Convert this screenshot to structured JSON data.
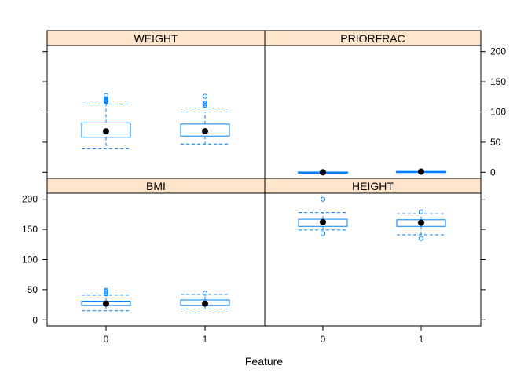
{
  "chart_data": {
    "type": "boxplot",
    "xlabel": "Feature",
    "x_categories": [
      "0",
      "1"
    ],
    "y_ticks": [
      0,
      50,
      100,
      150,
      200
    ],
    "y_range": [
      -10,
      210
    ],
    "colors": {
      "box": "#0080ff",
      "median_dot": "#000000",
      "strip_fill": "#ffe5cc",
      "frame": "#000000"
    },
    "panels": [
      {
        "title": "WEIGHT",
        "groups": [
          {
            "category": "0",
            "min": 39,
            "q1": 58,
            "median": 68,
            "q3": 82,
            "max": 113,
            "outliers": [
              117,
              118,
              119,
              120,
              122,
              127
            ]
          },
          {
            "category": "1",
            "min": 47,
            "q1": 60,
            "median": 68,
            "q3": 80,
            "max": 100,
            "outliers": [
              111,
              113,
              115,
              126
            ]
          }
        ]
      },
      {
        "title": "PRIORFRAC",
        "groups": [
          {
            "category": "0",
            "min": 0,
            "q1": 0,
            "median": 0,
            "q3": 0,
            "max": 0,
            "outliers": [
              1
            ]
          },
          {
            "category": "1",
            "min": 0,
            "q1": 0,
            "median": 1,
            "q3": 1,
            "max": 1,
            "outliers": []
          }
        ]
      },
      {
        "title": "BMI",
        "groups": [
          {
            "category": "0",
            "min": 15,
            "q1": 24,
            "median": 27,
            "q3": 31,
            "max": 41,
            "outliers": [
              43,
              45,
              47,
              49
            ]
          },
          {
            "category": "1",
            "min": 18,
            "q1": 24,
            "median": 27,
            "q3": 33,
            "max": 42,
            "outliers": [
              44
            ]
          }
        ]
      },
      {
        "title": "HEIGHT",
        "groups": [
          {
            "category": "0",
            "min": 149,
            "q1": 155,
            "median": 162,
            "q3": 167,
            "max": 178,
            "outliers": [
              143,
              200
            ]
          },
          {
            "category": "1",
            "min": 141,
            "q1": 155,
            "median": 161,
            "q3": 166,
            "max": 176,
            "outliers": [
              135,
              179
            ]
          }
        ]
      }
    ]
  }
}
